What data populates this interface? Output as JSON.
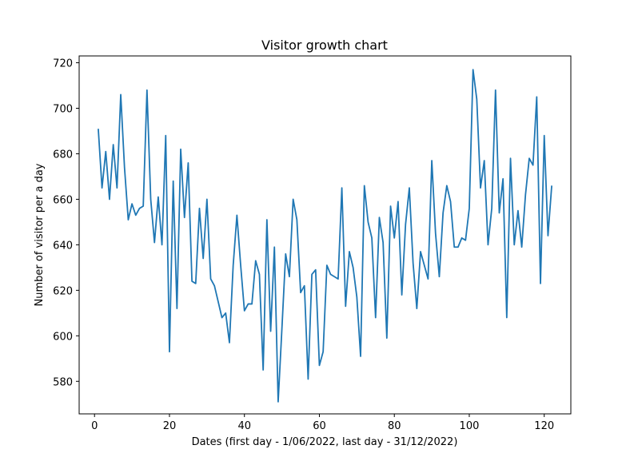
{
  "chart_data": {
    "type": "line",
    "title": "Visitor growth chart",
    "xlabel": "Dates (first day - 1/06/2022, last day - 31/12/2022)",
    "ylabel": "Number of visitor per a day",
    "xlim": [
      -4.1,
      127.1
    ],
    "ylim": [
      565.7,
      723.0
    ],
    "xticks": [
      0,
      20,
      40,
      60,
      80,
      100,
      120
    ],
    "yticks": [
      580,
      600,
      620,
      640,
      660,
      680,
      700,
      720
    ],
    "grid": false,
    "line_color": "#1f77b4",
    "series": [
      {
        "x": [
          1,
          2,
          3,
          4,
          5,
          6,
          7,
          8,
          9,
          10,
          11,
          12,
          13,
          14,
          15,
          16,
          17,
          18,
          19,
          20,
          21,
          22,
          23,
          24,
          25,
          26,
          27,
          28,
          29,
          30,
          31,
          32,
          33,
          34,
          35,
          36,
          37,
          38,
          39,
          40,
          41,
          42,
          43,
          44,
          45,
          46,
          47,
          48,
          49,
          50,
          51,
          52,
          53,
          54,
          55,
          56,
          57,
          58,
          59,
          60,
          61,
          62,
          63,
          64,
          65,
          66,
          67,
          68,
          69,
          70,
          71,
          72,
          73,
          74,
          75,
          76,
          77,
          78,
          79,
          80,
          81,
          82,
          83,
          84,
          85,
          86,
          87,
          88,
          89,
          90,
          91,
          92,
          93,
          94,
          95,
          96,
          97,
          98,
          99,
          100,
          101,
          102,
          103,
          104,
          105,
          106,
          107,
          108,
          109,
          110,
          111,
          112,
          113,
          114,
          115,
          116,
          117,
          118,
          119,
          120,
          121,
          122
        ],
        "y": [
          691,
          665,
          681,
          660,
          684,
          665,
          706,
          674,
          651,
          658,
          653,
          656,
          657,
          708,
          660,
          641,
          661,
          640,
          688,
          593,
          668,
          612,
          682,
          652,
          676,
          624,
          623,
          656,
          634,
          660,
          625,
          622,
          615,
          608,
          610,
          597,
          631,
          653,
          631,
          611,
          614,
          614,
          633,
          627,
          585,
          651,
          602,
          639,
          571,
          603,
          636,
          626,
          660,
          651,
          619,
          622,
          581,
          627,
          629,
          587,
          593,
          631,
          627,
          626,
          625,
          665,
          613,
          637,
          630,
          617,
          591,
          666,
          650,
          643,
          608,
          652,
          641,
          599,
          657,
          643,
          659,
          618,
          649,
          665,
          632,
          612,
          637,
          631,
          625,
          677,
          645,
          626,
          654,
          666,
          659,
          639,
          639,
          643,
          642,
          656,
          717,
          704,
          665,
          677,
          640,
          656,
          708,
          654,
          669,
          608,
          678,
          640,
          655,
          639,
          662,
          678,
          675,
          705,
          623,
          688,
          644,
          666
        ]
      }
    ]
  }
}
